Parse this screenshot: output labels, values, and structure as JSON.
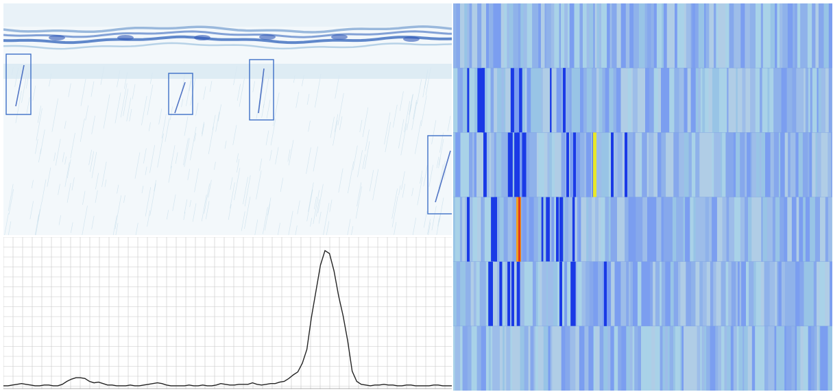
{
  "sonar_image": {
    "detections_count": 4
  },
  "line_plot": {
    "profile": [
      2,
      2,
      3,
      4,
      5,
      4,
      3,
      2,
      2,
      3,
      3,
      2,
      2,
      4,
      8,
      11,
      13,
      13,
      12,
      8,
      6,
      7,
      5,
      3,
      3,
      2,
      2,
      2,
      3,
      2,
      2,
      3,
      4,
      5,
      6,
      5,
      3,
      2,
      2,
      2,
      2,
      3,
      2,
      2,
      3,
      2,
      2,
      3,
      5,
      4,
      3,
      3,
      4,
      4,
      4,
      6,
      4,
      3,
      4,
      5,
      5,
      7,
      8,
      12,
      17,
      21,
      33,
      52,
      96,
      132,
      168,
      188,
      184,
      160,
      126,
      98,
      64,
      22,
      8,
      4,
      3,
      2,
      3,
      3,
      4,
      3,
      3,
      2,
      2,
      3,
      3,
      2,
      2,
      2,
      2,
      3,
      3,
      2,
      2,
      2
    ],
    "y_max": 200
  },
  "heatmap": {
    "rows": 6,
    "highlights": [
      {
        "row": 2,
        "band": 37,
        "color": "#e8e82a"
      },
      {
        "row": 3,
        "band": 17,
        "color": "#e03a1e"
      }
    ],
    "colors": {
      "base": "#9ab8e8",
      "light": "#a9d2e8",
      "dark": "#1a3ae6",
      "yellow": "#e8e82a",
      "red": "#e03a1e",
      "orange": "#f0a020",
      "box": "#3d6fc6"
    }
  }
}
